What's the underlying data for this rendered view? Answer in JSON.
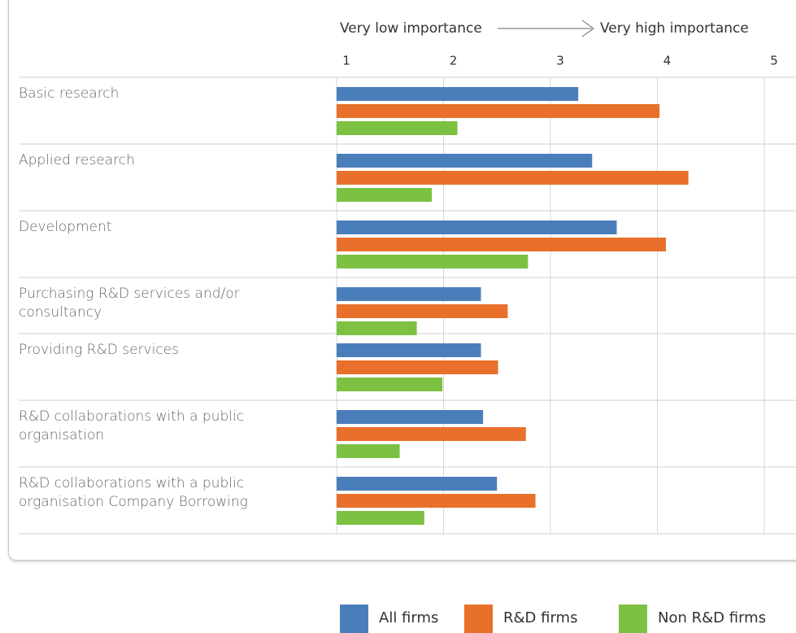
{
  "chart_data": {
    "type": "bar",
    "orientation": "horizontal",
    "scale_labels": [
      "Very low importance",
      "Very high importance"
    ],
    "categories": [
      "Basic research",
      "Applied research",
      "Development",
      "Purchasing R&D services and/or consultancy",
      "Providing R&D services",
      "R&D collaborations with a public organisation",
      "R&D collaborations with a public organisation Company Borrowing"
    ],
    "series": [
      {
        "name": "All firms",
        "color": "#4a7ebb",
        "values": [
          3.26,
          3.39,
          3.62,
          2.35,
          2.35,
          2.37,
          2.5
        ]
      },
      {
        "name": "R&D firms",
        "color": "#e8702a",
        "values": [
          4.02,
          4.29,
          4.08,
          2.6,
          2.51,
          2.77,
          2.86
        ]
      },
      {
        "name": "Non R&D firms",
        "color": "#7dc142",
        "values": [
          2.13,
          1.89,
          2.79,
          1.75,
          1.99,
          1.59,
          1.82
        ]
      }
    ],
    "xlim": [
      1,
      5
    ],
    "xticks": [
      1,
      2,
      3,
      4,
      5
    ],
    "grid": true,
    "legend": "bottom"
  }
}
